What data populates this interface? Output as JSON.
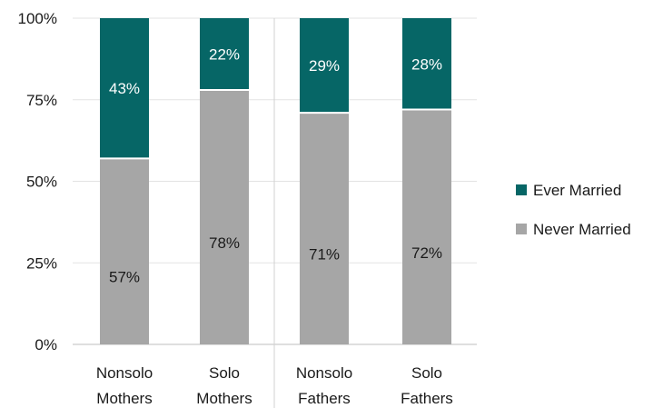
{
  "chart_data": {
    "type": "bar",
    "stacked": true,
    "percent_stacked": true,
    "categories": [
      [
        "Nonsolo",
        "Mothers"
      ],
      [
        "Solo",
        "Mothers"
      ],
      [
        "Nonsolo",
        "Fathers"
      ],
      [
        "Solo",
        "Fathers"
      ]
    ],
    "series": [
      {
        "name": "Never Married",
        "values": [
          57,
          78,
          71,
          72
        ],
        "color": "#a6a6a6",
        "label_color": "#1a1a1a"
      },
      {
        "name": "Ever Married",
        "values": [
          43,
          22,
          29,
          28
        ],
        "color": "#066666",
        "label_color": "#ffffff"
      }
    ],
    "data_labels": [
      [
        "57%",
        "78%",
        "71%",
        "72%"
      ],
      [
        "43%",
        "22%",
        "29%",
        "28%"
      ]
    ],
    "y_ticks": [
      "0%",
      "25%",
      "50%",
      "75%",
      "100%"
    ],
    "ylim": [
      0,
      100
    ],
    "grid": true,
    "group_divider_after_category": 1,
    "legend": {
      "position": "right",
      "order": [
        "Ever Married",
        "Never Married"
      ]
    }
  }
}
